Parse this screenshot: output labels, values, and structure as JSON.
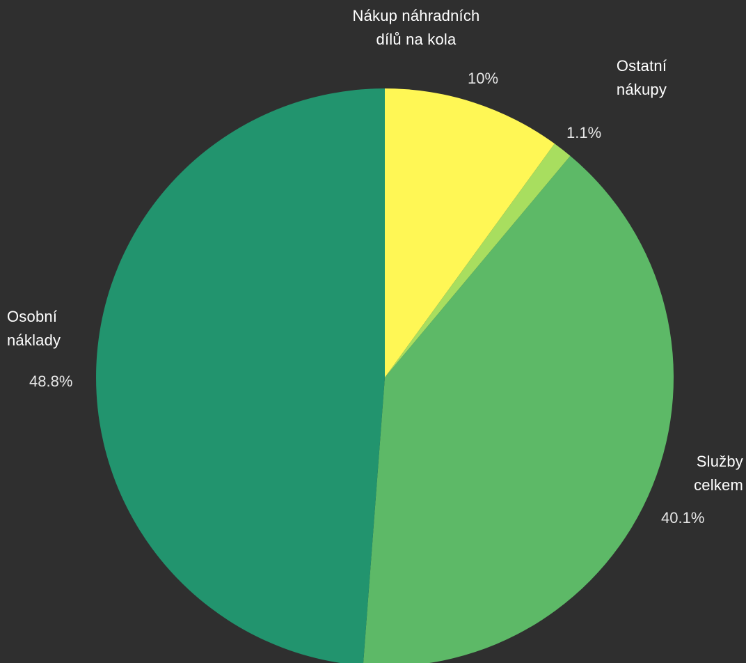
{
  "chart_data": {
    "type": "pie",
    "background": "#2f2f2f",
    "start_angle_deg": 0,
    "direction": "clockwise",
    "slices": [
      {
        "label": "Nákup náhradních\ndílů na kola",
        "value": 10.0,
        "value_label": "10%",
        "color": "#fff755"
      },
      {
        "label": "Ostatní\nnákupy",
        "value": 1.1,
        "value_label": "1.1%",
        "color": "#a8de5f"
      },
      {
        "label": "Služby\ncelkem",
        "value": 40.1,
        "value_label": "40.1%",
        "color": "#5db967"
      },
      {
        "label": "Osobní\nnáklady",
        "value": 48.8,
        "value_label": "48.8%",
        "color": "#22946e"
      }
    ]
  }
}
